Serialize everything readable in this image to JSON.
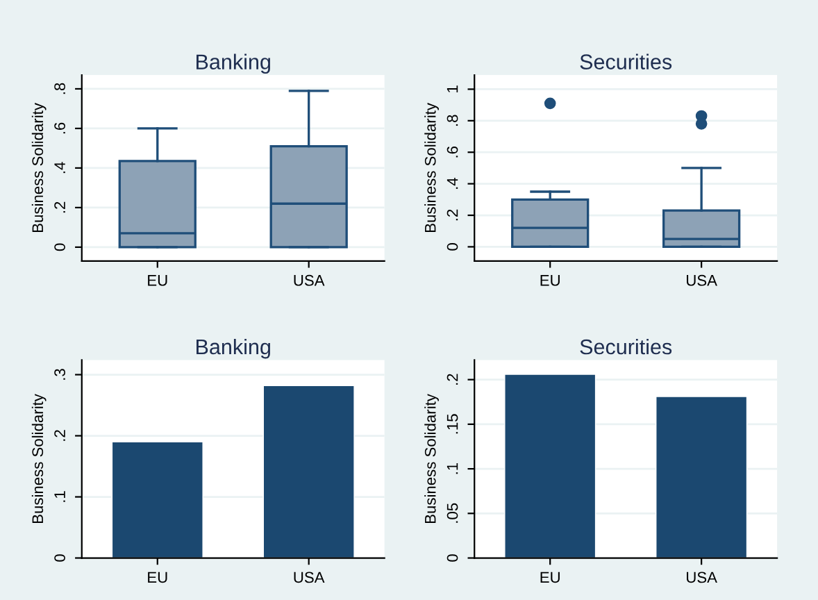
{
  "chart_data": [
    {
      "type": "box",
      "title": "Banking",
      "ylabel": "Business Solidarity",
      "categories": [
        "EU",
        "USA"
      ],
      "color": "#8da2b6",
      "boxes": [
        {
          "low": 0,
          "q1": 0,
          "median": 0.07,
          "q3": 0.435,
          "high": 0.6
        },
        {
          "low": 0,
          "q1": 0,
          "median": 0.22,
          "q3": 0.51,
          "high": 0.79
        }
      ],
      "ylim": [
        -0.07,
        0.87
      ],
      "yticks": [
        0,
        {
          "value": 0.2,
          "label": ".2"
        },
        {
          "value": 0.4,
          "label": ".4"
        },
        {
          "value": 0.6,
          "label": ".6"
        },
        {
          "value": 0.8,
          "label": ".8"
        }
      ],
      "grid": "y"
    },
    {
      "type": "box",
      "title": "Securities",
      "ylabel": "Business Solidarity",
      "categories": [
        "EU",
        "USA"
      ],
      "color": "#8da2b6",
      "boxes": [
        {
          "low": 0,
          "q1": 0,
          "median": 0.12,
          "q3": 0.3,
          "high": 0.35,
          "outliers": [
            0.91
          ]
        },
        {
          "low": 0,
          "q1": 0,
          "median": 0.05,
          "q3": 0.23,
          "high": 0.5,
          "outliers": [
            0.83,
            0.78
          ]
        }
      ],
      "ylim": [
        -0.09,
        1.09
      ],
      "yticks": [
        0,
        {
          "value": 0.2,
          "label": ".2"
        },
        {
          "value": 0.4,
          "label": ".4"
        },
        {
          "value": 0.6,
          "label": ".6"
        },
        {
          "value": 0.8,
          "label": ".8"
        },
        1
      ],
      "grid": "y"
    },
    {
      "type": "bar",
      "title": "Banking",
      "ylabel": "Business Solidarity",
      "categories": [
        "EU",
        "USA"
      ],
      "values": [
        0.19,
        0.282
      ],
      "color": "#1b4870",
      "ylim": [
        0,
        0.324
      ],
      "yticks": [
        0,
        {
          "value": 0.1,
          "label": ".1"
        },
        {
          "value": 0.2,
          "label": ".2"
        },
        {
          "value": 0.3,
          "label": ".3"
        }
      ],
      "grid": "y"
    },
    {
      "type": "bar",
      "title": "Securities",
      "ylabel": "Business Solidarity",
      "categories": [
        "EU",
        "USA"
      ],
      "values": [
        0.206,
        0.181
      ],
      "color": "#1b4870",
      "ylim": [
        0,
        0.222
      ],
      "yticks": [
        0,
        {
          "value": 0.05,
          "label": ".05"
        },
        {
          "value": 0.1,
          "label": ".1"
        },
        {
          "value": 0.15,
          "label": ".15"
        },
        {
          "value": 0.2,
          "label": ".2"
        }
      ],
      "grid": "y"
    }
  ]
}
